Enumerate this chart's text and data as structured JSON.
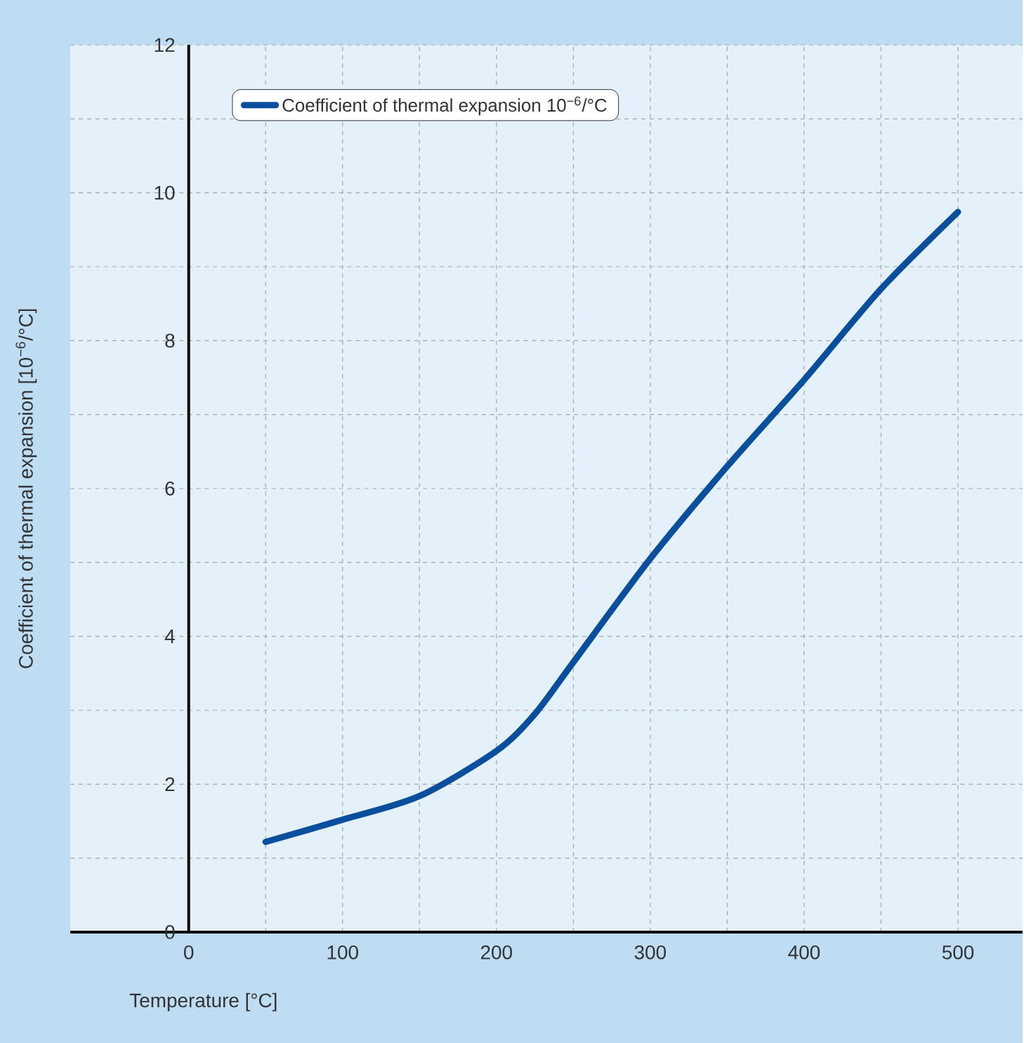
{
  "chart_data": {
    "type": "line",
    "xlabel": "Temperature [°C]",
    "ylabel": "Coefficient of thermal expansion [10$^{−6}$/°C]",
    "x": [
      50,
      100,
      150,
      200,
      225,
      250,
      300,
      350,
      400,
      450,
      500
    ],
    "series": [
      {
        "name": "Coefficient of thermal expansion 10$^{−6}$/°C",
        "color": "#0a4f9e",
        "values": [
          1.22,
          1.52,
          1.84,
          2.45,
          2.95,
          3.65,
          5.05,
          6.3,
          7.47,
          8.7,
          9.74
        ]
      }
    ],
    "xlim": [
      -77,
      542
    ],
    "ylim": [
      0,
      12
    ],
    "xticks": [
      0,
      {
        "value": 50,
        "label": null
      },
      100,
      {
        "value": 150,
        "label": null
      },
      200,
      {
        "value": 250,
        "label": null
      },
      300,
      {
        "value": 350,
        "label": null
      },
      400,
      {
        "value": 450,
        "label": null
      },
      500
    ],
    "yticks": [
      0,
      {
        "value": 1,
        "label": null
      },
      2,
      {
        "value": 3,
        "label": null
      },
      4,
      {
        "value": 5,
        "label": null
      },
      6,
      {
        "value": 7,
        "label": null
      },
      8,
      {
        "value": 9,
        "label": null
      },
      10,
      {
        "value": 11,
        "label": null
      },
      12
    ],
    "grid": true,
    "legend": "top left",
    "marker": "none",
    "line_style": "solid"
  }
}
